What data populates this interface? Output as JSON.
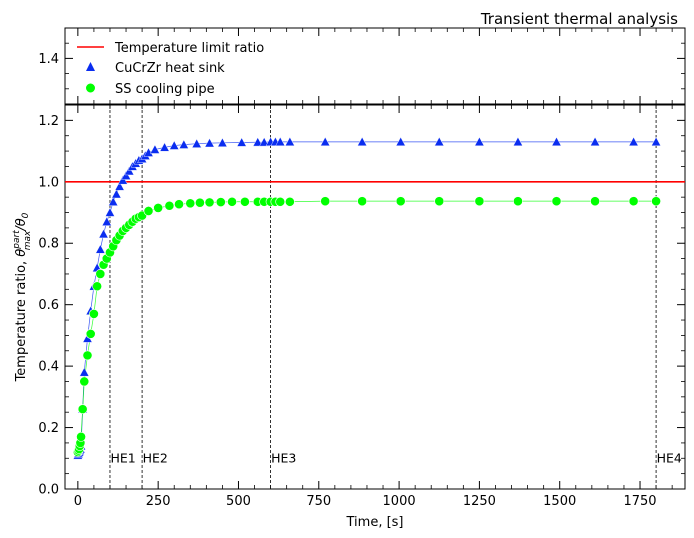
{
  "chart_data": {
    "type": "scatter",
    "title": "Transient thermal analysis",
    "xlabel": "Time, [s]",
    "ylabel_main": "Temperature ratio, ",
    "ylabel_theta": "θ",
    "ylabel_sup": "part",
    "ylabel_sub": "max",
    "ylabel_tail": "/θ",
    "ylabel_tail_sub": "0",
    "xlim": [
      -40,
      1890
    ],
    "ylim": [
      0,
      1.25
    ],
    "upper_ylim": [
      1.25,
      1.5
    ],
    "xticks": [
      0,
      250,
      500,
      750,
      1000,
      1250,
      1500,
      1750
    ],
    "yticks": [
      0.0,
      0.2,
      0.4,
      0.6,
      0.8,
      1.0,
      1.2
    ],
    "upper_yticks": [
      1.4
    ],
    "grid": false,
    "legend_position": "top-left",
    "limit_line": {
      "name": "Temperature limit ratio",
      "y": 1.0,
      "color": "#ff0000"
    },
    "vlines": [
      {
        "x": 100,
        "label": "HE1"
      },
      {
        "x": 200,
        "label": "HE2"
      },
      {
        "x": 600,
        "label": "HE3"
      },
      {
        "x": 1800,
        "label": "HE4"
      }
    ],
    "series": [
      {
        "name": "CuCrZr heat sink",
        "marker": "triangle",
        "color": "#0a2df0",
        "x": [
          0,
          2,
          4,
          6,
          8,
          10,
          15,
          20,
          30,
          40,
          50,
          60,
          70,
          80,
          90,
          100,
          110,
          120,
          130,
          140,
          150,
          160,
          170,
          180,
          190,
          200,
          210,
          220,
          240,
          270,
          300,
          330,
          370,
          410,
          450,
          510,
          560,
          580,
          600,
          615,
          630,
          660,
          770,
          885,
          1005,
          1125,
          1250,
          1370,
          1490,
          1610,
          1730,
          1800
        ],
        "y": [
          0.11,
          0.115,
          0.12,
          0.125,
          0.13,
          0.14,
          0.26,
          0.38,
          0.49,
          0.58,
          0.66,
          0.72,
          0.78,
          0.83,
          0.87,
          0.9,
          0.935,
          0.96,
          0.985,
          1.005,
          1.02,
          1.035,
          1.05,
          1.06,
          1.07,
          1.075,
          1.085,
          1.095,
          1.105,
          1.112,
          1.118,
          1.121,
          1.124,
          1.126,
          1.127,
          1.128,
          1.129,
          1.129,
          1.13,
          1.13,
          1.13,
          1.13,
          1.13,
          1.13,
          1.13,
          1.13,
          1.13,
          1.13,
          1.13,
          1.13,
          1.13,
          1.13
        ]
      },
      {
        "name": "SS cooling pipe",
        "marker": "circle",
        "color": "#00ff00",
        "x": [
          0,
          2,
          4,
          6,
          8,
          10,
          15,
          20,
          30,
          40,
          50,
          60,
          70,
          80,
          90,
          100,
          110,
          120,
          130,
          140,
          150,
          160,
          170,
          180,
          190,
          200,
          220,
          250,
          285,
          315,
          350,
          380,
          410,
          445,
          480,
          520,
          560,
          580,
          600,
          615,
          630,
          660,
          770,
          885,
          1005,
          1125,
          1250,
          1370,
          1490,
          1610,
          1730,
          1800
        ],
        "y": [
          0.12,
          0.125,
          0.13,
          0.14,
          0.15,
          0.17,
          0.26,
          0.35,
          0.435,
          0.505,
          0.57,
          0.66,
          0.7,
          0.73,
          0.75,
          0.77,
          0.79,
          0.81,
          0.825,
          0.84,
          0.85,
          0.86,
          0.87,
          0.88,
          0.885,
          0.89,
          0.905,
          0.915,
          0.922,
          0.927,
          0.93,
          0.932,
          0.933,
          0.934,
          0.935,
          0.935,
          0.935,
          0.935,
          0.935,
          0.935,
          0.935,
          0.935,
          0.937,
          0.937,
          0.937,
          0.937,
          0.937,
          0.937,
          0.937,
          0.937,
          0.937,
          0.937
        ]
      }
    ]
  }
}
